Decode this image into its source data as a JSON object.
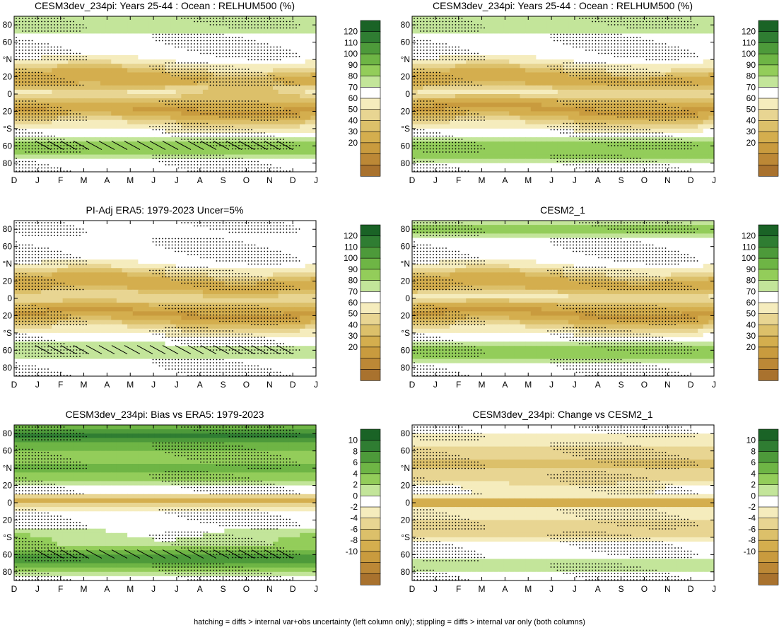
{
  "months": [
    "D",
    "J",
    "F",
    "M",
    "A",
    "M",
    "J",
    "J",
    "A",
    "S",
    "O",
    "N",
    "D",
    "J"
  ],
  "lat_labels": [
    "80",
    "60",
    "°N",
    "20",
    "0",
    "20",
    "°S",
    "60",
    "80"
  ],
  "rh_levels": [
    "120",
    "110",
    "100",
    "90",
    "80",
    "70",
    "60",
    "50",
    "40",
    "30",
    "20"
  ],
  "diff_levels": [
    "10",
    "8",
    "6",
    "4",
    "2",
    "0",
    "-2",
    "-4",
    "-6",
    "-8",
    "-10"
  ],
  "colors": {
    "rh": [
      "#1a6326",
      "#2f7d32",
      "#4d9a3a",
      "#6eb545",
      "#93cd5a",
      "#c3e59a",
      "#ffffff",
      "#f5ecbd",
      "#e8d592",
      "#dcc06a",
      "#d4ae4e",
      "#c99b3e",
      "#bc8836",
      "#a9722e"
    ],
    "diff": [
      "#1a6326",
      "#2f7d32",
      "#4d9a3a",
      "#6eb545",
      "#93cd5a",
      "#c3e59a",
      "#ffffff",
      "#f5ecbd",
      "#e8d592",
      "#dcc06a",
      "#d4ae4e",
      "#c99b3e",
      "#bc8836",
      "#a9722e"
    ]
  },
  "footer": "hatching = diffs > internal var+obs uncertainty (left column only); stippling = diffs > internal var only (both columns)",
  "panels": [
    {
      "title": "CESM3dev_234pi: Years 25-44 : Ocean : RELHUM500 (%)",
      "scale": "rh"
    },
    {
      "title": "CESM3dev_234pi: Years 25-44 : Ocean : RELHUM500 (%)",
      "scale": "rh"
    },
    {
      "title": "PI-Adj ERA5: 1979-2023 Uncer=5%",
      "scale": "rh"
    },
    {
      "title": "CESM2_1",
      "scale": "rh"
    },
    {
      "title": "CESM3dev_234pi: Bias vs ERA5: 1979-2023",
      "scale": "diff"
    },
    {
      "title": "CESM3dev_234pi: Change vs CESM2_1",
      "scale": "diff"
    }
  ],
  "chart_data": [
    {
      "type": "heatmap",
      "title": "CESM3dev_234pi: Years 25-44 : Ocean : RELHUM500 (%)",
      "x": [
        "D",
        "J",
        "F",
        "M",
        "A",
        "M",
        "J",
        "J",
        "A",
        "S",
        "O",
        "N",
        "D",
        "J"
      ],
      "ylabel_ticks": [
        "80",
        "60",
        "°N",
        "20",
        "0",
        "20",
        "°S",
        "60",
        "80"
      ],
      "ylim": [
        -90,
        90
      ],
      "colorbar": [
        20,
        30,
        40,
        50,
        60,
        70,
        80,
        90,
        100,
        110,
        120
      ],
      "hatching": true,
      "stippling": true
    },
    {
      "type": "heatmap",
      "title": "CESM3dev_234pi: Years 25-44 : Ocean : RELHUM500 (%)",
      "x": [
        "D",
        "J",
        "F",
        "M",
        "A",
        "M",
        "J",
        "J",
        "A",
        "S",
        "O",
        "N",
        "D",
        "J"
      ],
      "ylabel_ticks": [
        "80",
        "60",
        "°N",
        "20",
        "0",
        "20",
        "°S",
        "60",
        "80"
      ],
      "ylim": [
        -90,
        90
      ],
      "colorbar": [
        20,
        30,
        40,
        50,
        60,
        70,
        80,
        90,
        100,
        110,
        120
      ],
      "hatching": false,
      "stippling": true
    },
    {
      "type": "heatmap",
      "title": "PI-Adj ERA5: 1979-2023 Uncer=5%",
      "x": [
        "D",
        "J",
        "F",
        "M",
        "A",
        "M",
        "J",
        "J",
        "A",
        "S",
        "O",
        "N",
        "D",
        "J"
      ],
      "ylabel_ticks": [
        "80",
        "60",
        "°N",
        "20",
        "0",
        "20",
        "°S",
        "60",
        "80"
      ],
      "ylim": [
        -90,
        90
      ],
      "colorbar": [
        20,
        30,
        40,
        50,
        60,
        70,
        80,
        90,
        100,
        110,
        120
      ],
      "hatching": true,
      "stippling": true
    },
    {
      "type": "heatmap",
      "title": "CESM2_1",
      "x": [
        "D",
        "J",
        "F",
        "M",
        "A",
        "M",
        "J",
        "J",
        "A",
        "S",
        "O",
        "N",
        "D",
        "J"
      ],
      "ylabel_ticks": [
        "80",
        "60",
        "°N",
        "20",
        "0",
        "20",
        "°S",
        "60",
        "80"
      ],
      "ylim": [
        -90,
        90
      ],
      "colorbar": [
        20,
        30,
        40,
        50,
        60,
        70,
        80,
        90,
        100,
        110,
        120
      ],
      "hatching": false,
      "stippling": true
    },
    {
      "type": "heatmap",
      "title": "CESM3dev_234pi: Bias vs ERA5: 1979-2023",
      "x": [
        "D",
        "J",
        "F",
        "M",
        "A",
        "M",
        "J",
        "J",
        "A",
        "S",
        "O",
        "N",
        "D",
        "J"
      ],
      "ylabel_ticks": [
        "80",
        "60",
        "°N",
        "20",
        "0",
        "20",
        "°S",
        "60",
        "80"
      ],
      "ylim": [
        -90,
        90
      ],
      "colorbar": [
        -10,
        -8,
        -6,
        -4,
        -2,
        0,
        2,
        4,
        6,
        8,
        10
      ],
      "hatching": true,
      "stippling": true
    },
    {
      "type": "heatmap",
      "title": "CESM3dev_234pi: Change vs CESM2_1",
      "x": [
        "D",
        "J",
        "F",
        "M",
        "A",
        "M",
        "J",
        "J",
        "A",
        "S",
        "O",
        "N",
        "D",
        "J"
      ],
      "ylabel_ticks": [
        "80",
        "60",
        "°N",
        "20",
        "0",
        "20",
        "°S",
        "60",
        "80"
      ],
      "ylim": [
        -90,
        90
      ],
      "colorbar": [
        -10,
        -8,
        -6,
        -4,
        -2,
        0,
        2,
        4,
        6,
        8,
        10
      ],
      "hatching": false,
      "stippling": true
    }
  ]
}
